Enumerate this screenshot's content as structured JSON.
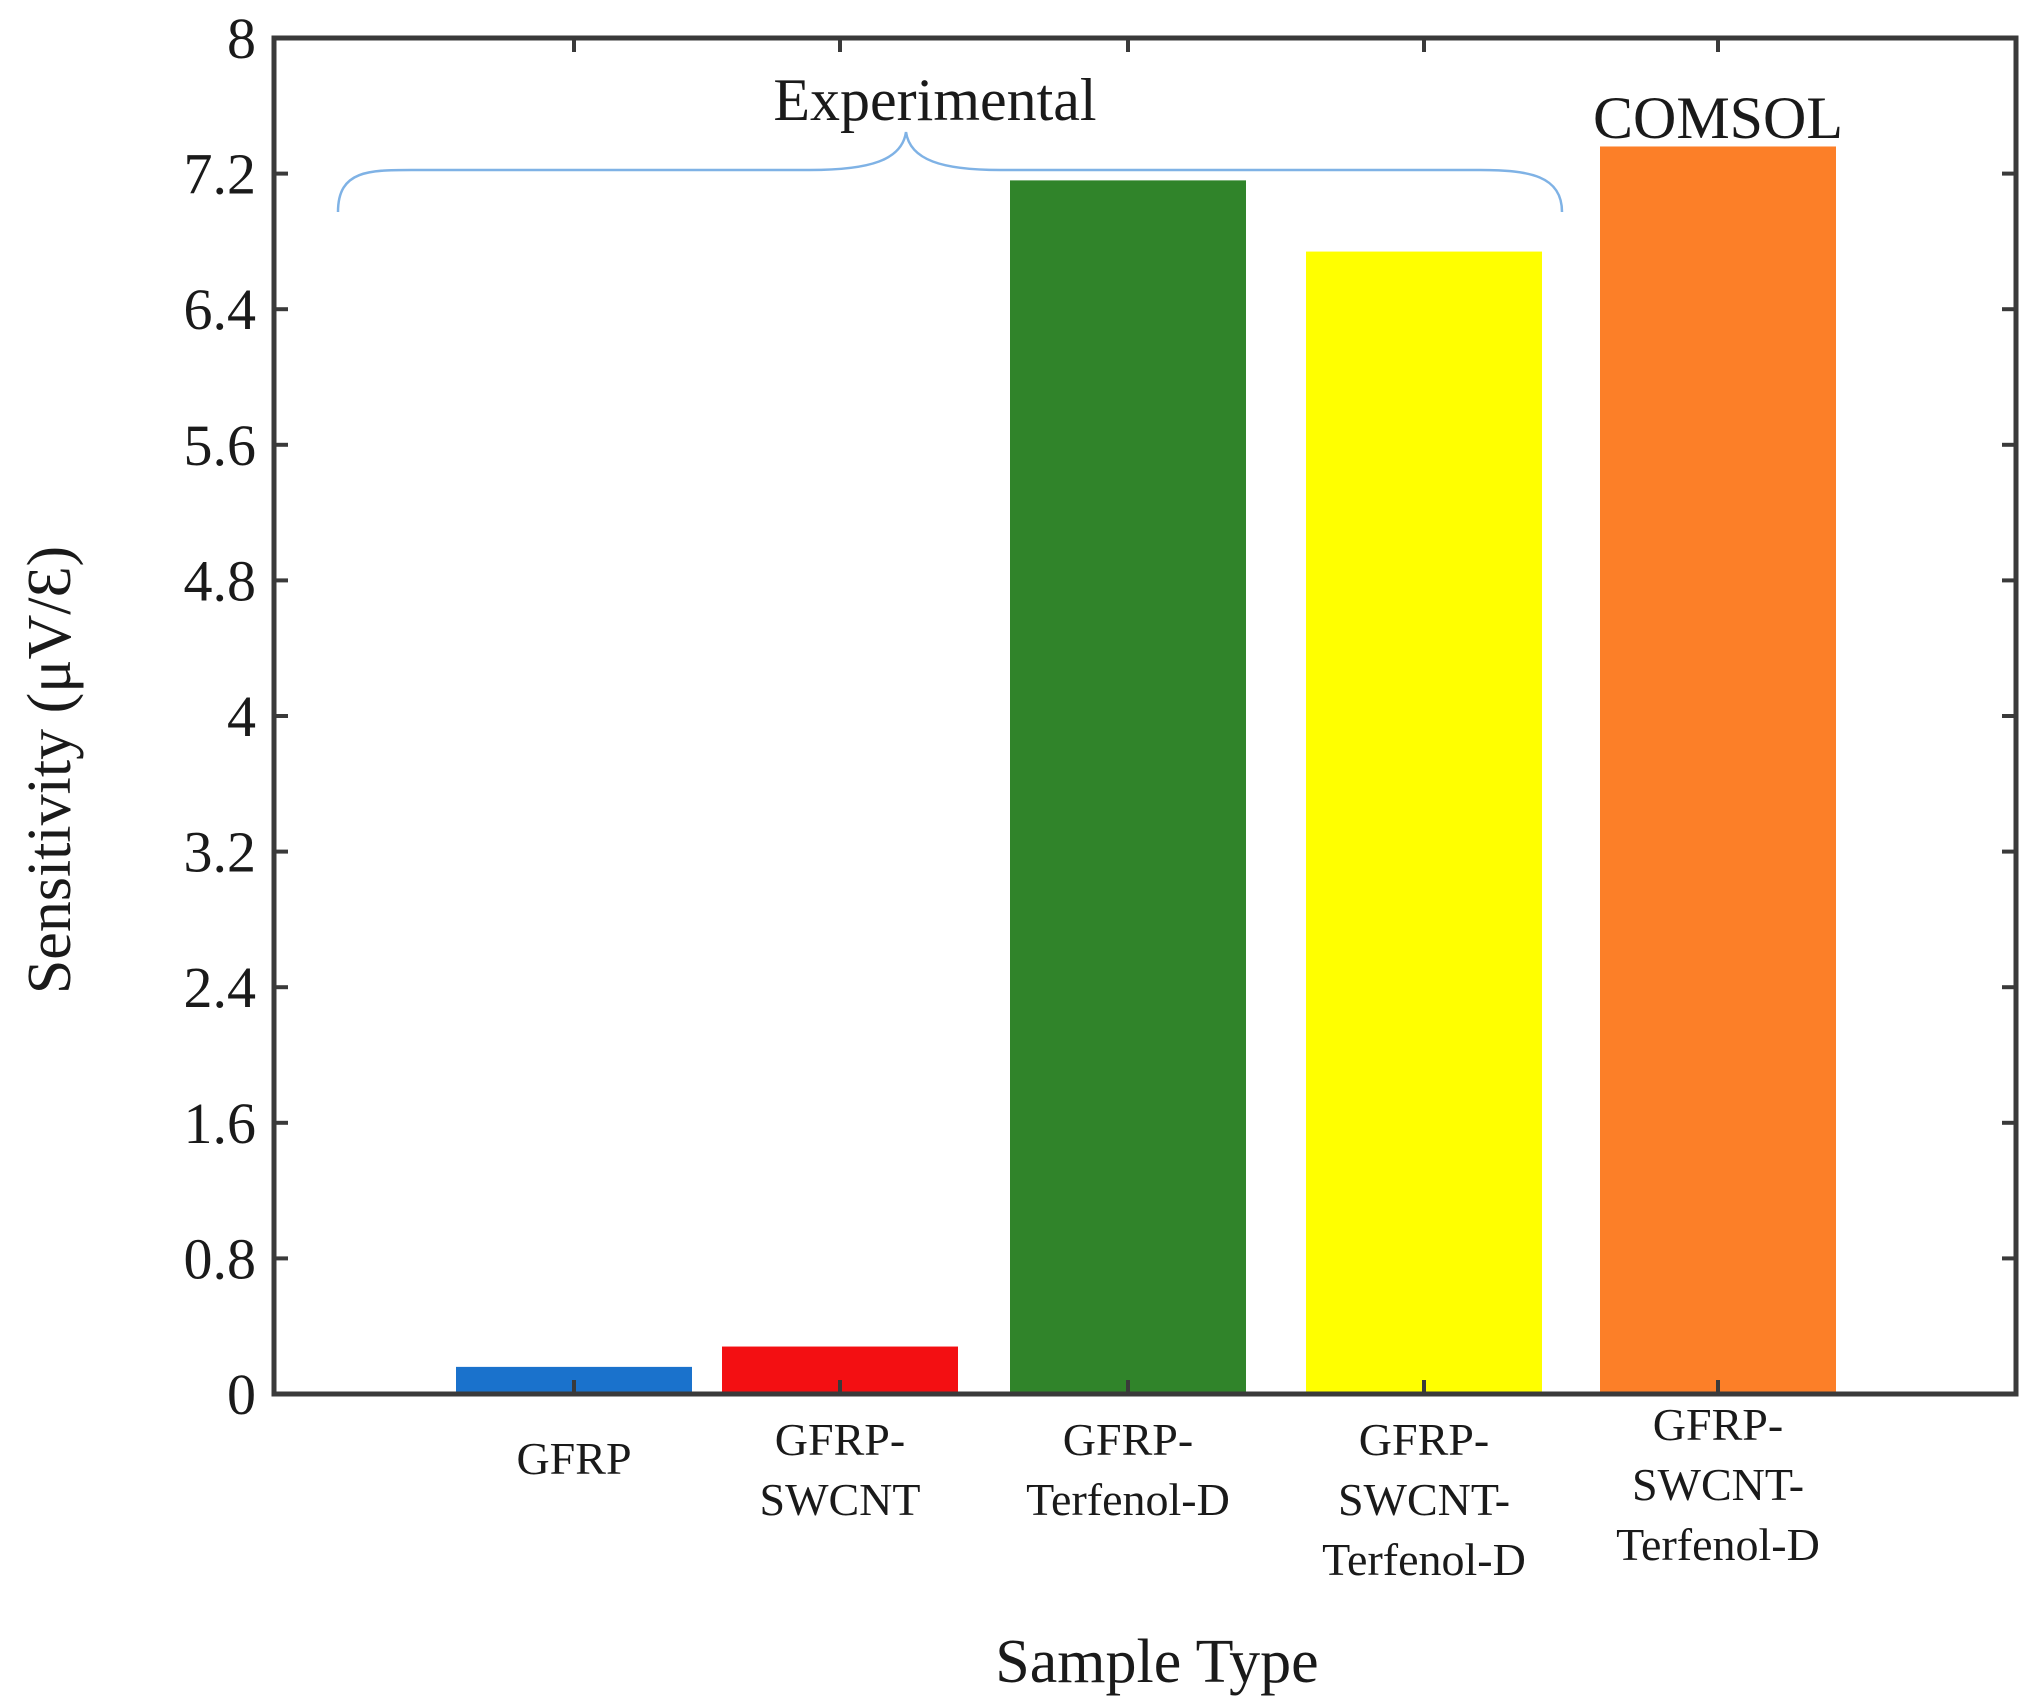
{
  "chart_data": {
    "type": "bar",
    "title": "",
    "xlabel": "Sample Type",
    "ylabel": "Sensitivity (μV/Ɛ)",
    "ylim": [
      0,
      8
    ],
    "yticks": [
      "0",
      "0.8",
      "1.6",
      "2.4",
      "3.2",
      "4",
      "4.8",
      "5.6",
      "6.4",
      "7.2",
      "8"
    ],
    "grid": false,
    "categories": [
      [
        "GFRP"
      ],
      [
        "GFRP-",
        "SWCNT"
      ],
      [
        "GFRP-",
        "Terfenol-D"
      ],
      [
        "GFRP-",
        "SWCNT-",
        "Terfenol-D"
      ],
      [
        "GFRP-",
        "SWCNT-",
        "Terfenol-D"
      ]
    ],
    "values": [
      0.16,
      0.28,
      7.16,
      6.74,
      7.36
    ],
    "colors": [
      "#1a72cc",
      "#f30f12",
      "#30842a",
      "#ffff00",
      "#fc7f28"
    ],
    "annotations": {
      "experimental": "Experimental",
      "comsol": "COMSOL"
    },
    "brace_color": "#7fb2e5",
    "axis_color": "#3a3a3a"
  }
}
